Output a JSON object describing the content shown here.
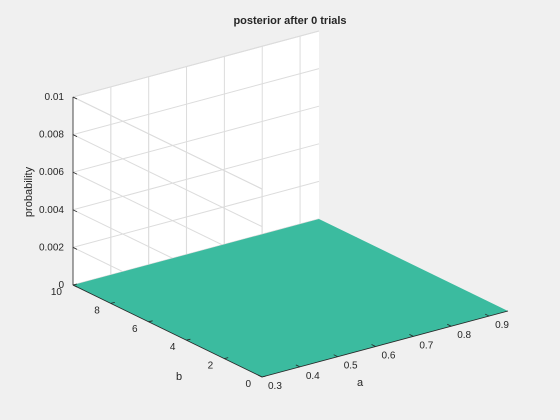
{
  "chart_data": {
    "type": "surface",
    "title": "posterior after 0 trials",
    "xlabel": "a",
    "ylabel": "b",
    "zlabel": "probability",
    "x_ticks": [
      "0.3",
      "0.4",
      "0.5",
      "0.6",
      "0.7",
      "0.8",
      "0.9"
    ],
    "y_ticks": [
      "0",
      "2",
      "4",
      "6",
      "8",
      "10"
    ],
    "z_ticks": [
      "0",
      "0.002",
      "0.004",
      "0.006",
      "0.008",
      "0.01"
    ],
    "xlim": [
      0.3,
      0.95
    ],
    "ylim": [
      0,
      10
    ],
    "zlim": [
      0,
      0.01
    ],
    "surface": {
      "z": 0,
      "color": "#3bbb9f"
    },
    "grid": true
  }
}
